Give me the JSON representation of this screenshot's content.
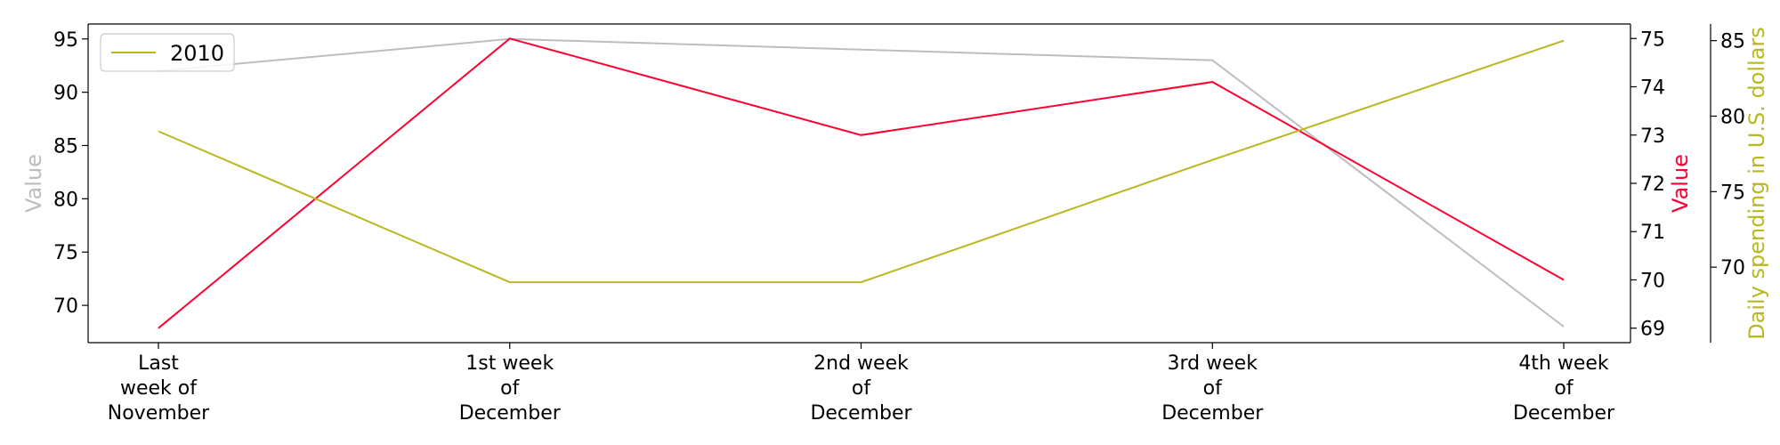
{
  "chart_data": {
    "type": "line",
    "categories": [
      [
        "Last",
        "week of",
        "November"
      ],
      [
        "1st week",
        "of",
        "December"
      ],
      [
        "2nd week",
        "of",
        "December"
      ],
      [
        "3rd week",
        "of",
        "December"
      ],
      [
        "4th week",
        "of",
        "December"
      ]
    ],
    "axes": [
      {
        "id": "left",
        "label": "Value",
        "label_color": "#bdbdbd",
        "ylim": [
          66.5,
          96.4
        ],
        "ticks": [
          70,
          75,
          80,
          85,
          90,
          95
        ]
      },
      {
        "id": "right1",
        "label": "Value",
        "label_color": "#ff0030",
        "ylim": [
          68.7,
          75.3
        ],
        "ticks": [
          69,
          70,
          71,
          72,
          73,
          74,
          75
        ]
      },
      {
        "id": "right2",
        "label": "Daily spending in U.S. dollars",
        "label_color": "#b8b820",
        "ylim": [
          65.0,
          86.1
        ],
        "ticks": [
          70,
          75,
          80,
          85
        ]
      }
    ],
    "series": [
      {
        "axis": "left",
        "color": "#bdbdbd",
        "values": [
          92,
          95,
          94,
          93,
          68
        ]
      },
      {
        "axis": "right1",
        "color": "#ff0030",
        "values": [
          69,
          75,
          73,
          74.1,
          70
        ]
      },
      {
        "name": "2010",
        "axis": "right2",
        "color": "#b8b820",
        "values": [
          79.0,
          69.0,
          69.0,
          77.1,
          85.0
        ]
      }
    ],
    "legend": {
      "position": "top-left",
      "entries": [
        "2010"
      ]
    },
    "grid": false
  }
}
